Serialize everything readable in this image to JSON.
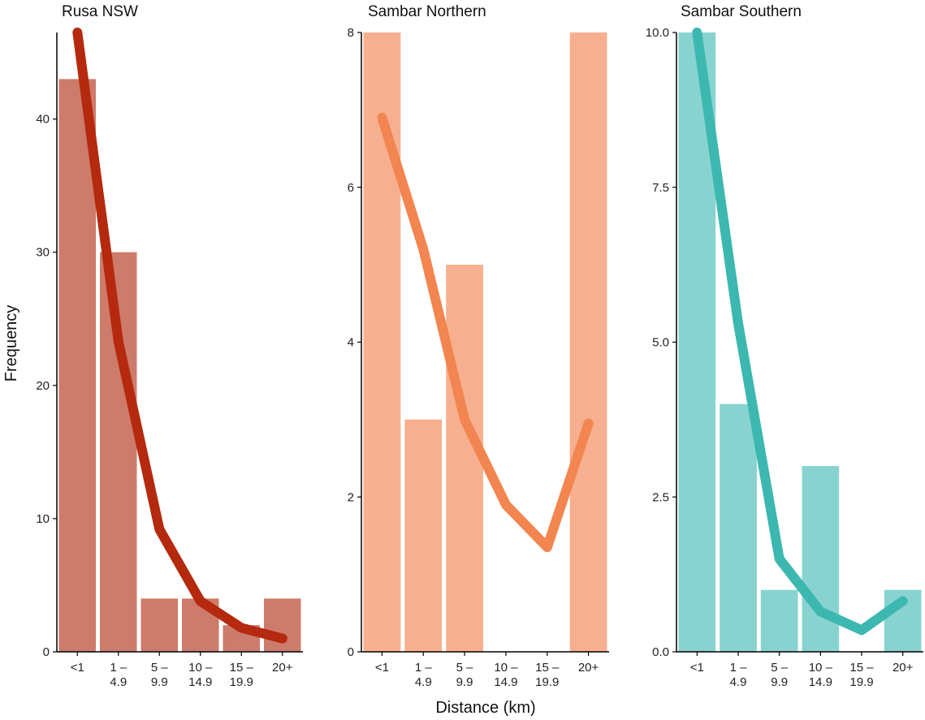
{
  "chart_data": [
    {
      "type": "bar",
      "title": "Rusa NSW",
      "categories": [
        "<1",
        "1 –\n4.9",
        "5 –\n9.9",
        "10 –\n14.9",
        "15 –\n19.9",
        "20+"
      ],
      "values": [
        43,
        30,
        4,
        4,
        2,
        4
      ],
      "trend_line": [
        46.5,
        23.3,
        9.2,
        3.8,
        1.8,
        1.0
      ],
      "yticks": [
        0,
        10,
        20,
        30,
        40
      ],
      "ylim": [
        0,
        46.5
      ],
      "bar_color": "#CD7B6B",
      "line_color": "#B5290E",
      "ylabel": "Frequency",
      "xlabel": ""
    },
    {
      "type": "bar",
      "title": "Sambar Northern",
      "categories": [
        "<1",
        "1 –\n4.9",
        "5 –\n9.9",
        "10 –\n14.9",
        "15 –\n19.9",
        "20+"
      ],
      "values": [
        8,
        3,
        5,
        0,
        0,
        8
      ],
      "trend_line": [
        6.9,
        5.2,
        3.0,
        1.9,
        1.35,
        2.95
      ],
      "yticks": [
        0,
        2,
        4,
        6,
        8
      ],
      "ylim": [
        0,
        8
      ],
      "bar_color": "#F7B08F",
      "line_color": "#F28550",
      "ylabel": "",
      "xlabel": "Distance (km)"
    },
    {
      "type": "bar",
      "title": "Sambar Southern",
      "categories": [
        "<1",
        "1 –\n4.9",
        "5 –\n9.9",
        "10 –\n14.9",
        "15 –\n19.9",
        "20+"
      ],
      "values": [
        10,
        4,
        1,
        3,
        0,
        1
      ],
      "trend_line": [
        10.0,
        5.3,
        1.5,
        0.65,
        0.35,
        0.82
      ],
      "yticks": [
        "0.0",
        "2.5",
        "5.0",
        "7.5",
        "10.0"
      ],
      "ylim": [
        0,
        10
      ],
      "bar_color": "#88D3D0",
      "line_color": "#3CB8B1",
      "ylabel": "",
      "xlabel": ""
    }
  ]
}
